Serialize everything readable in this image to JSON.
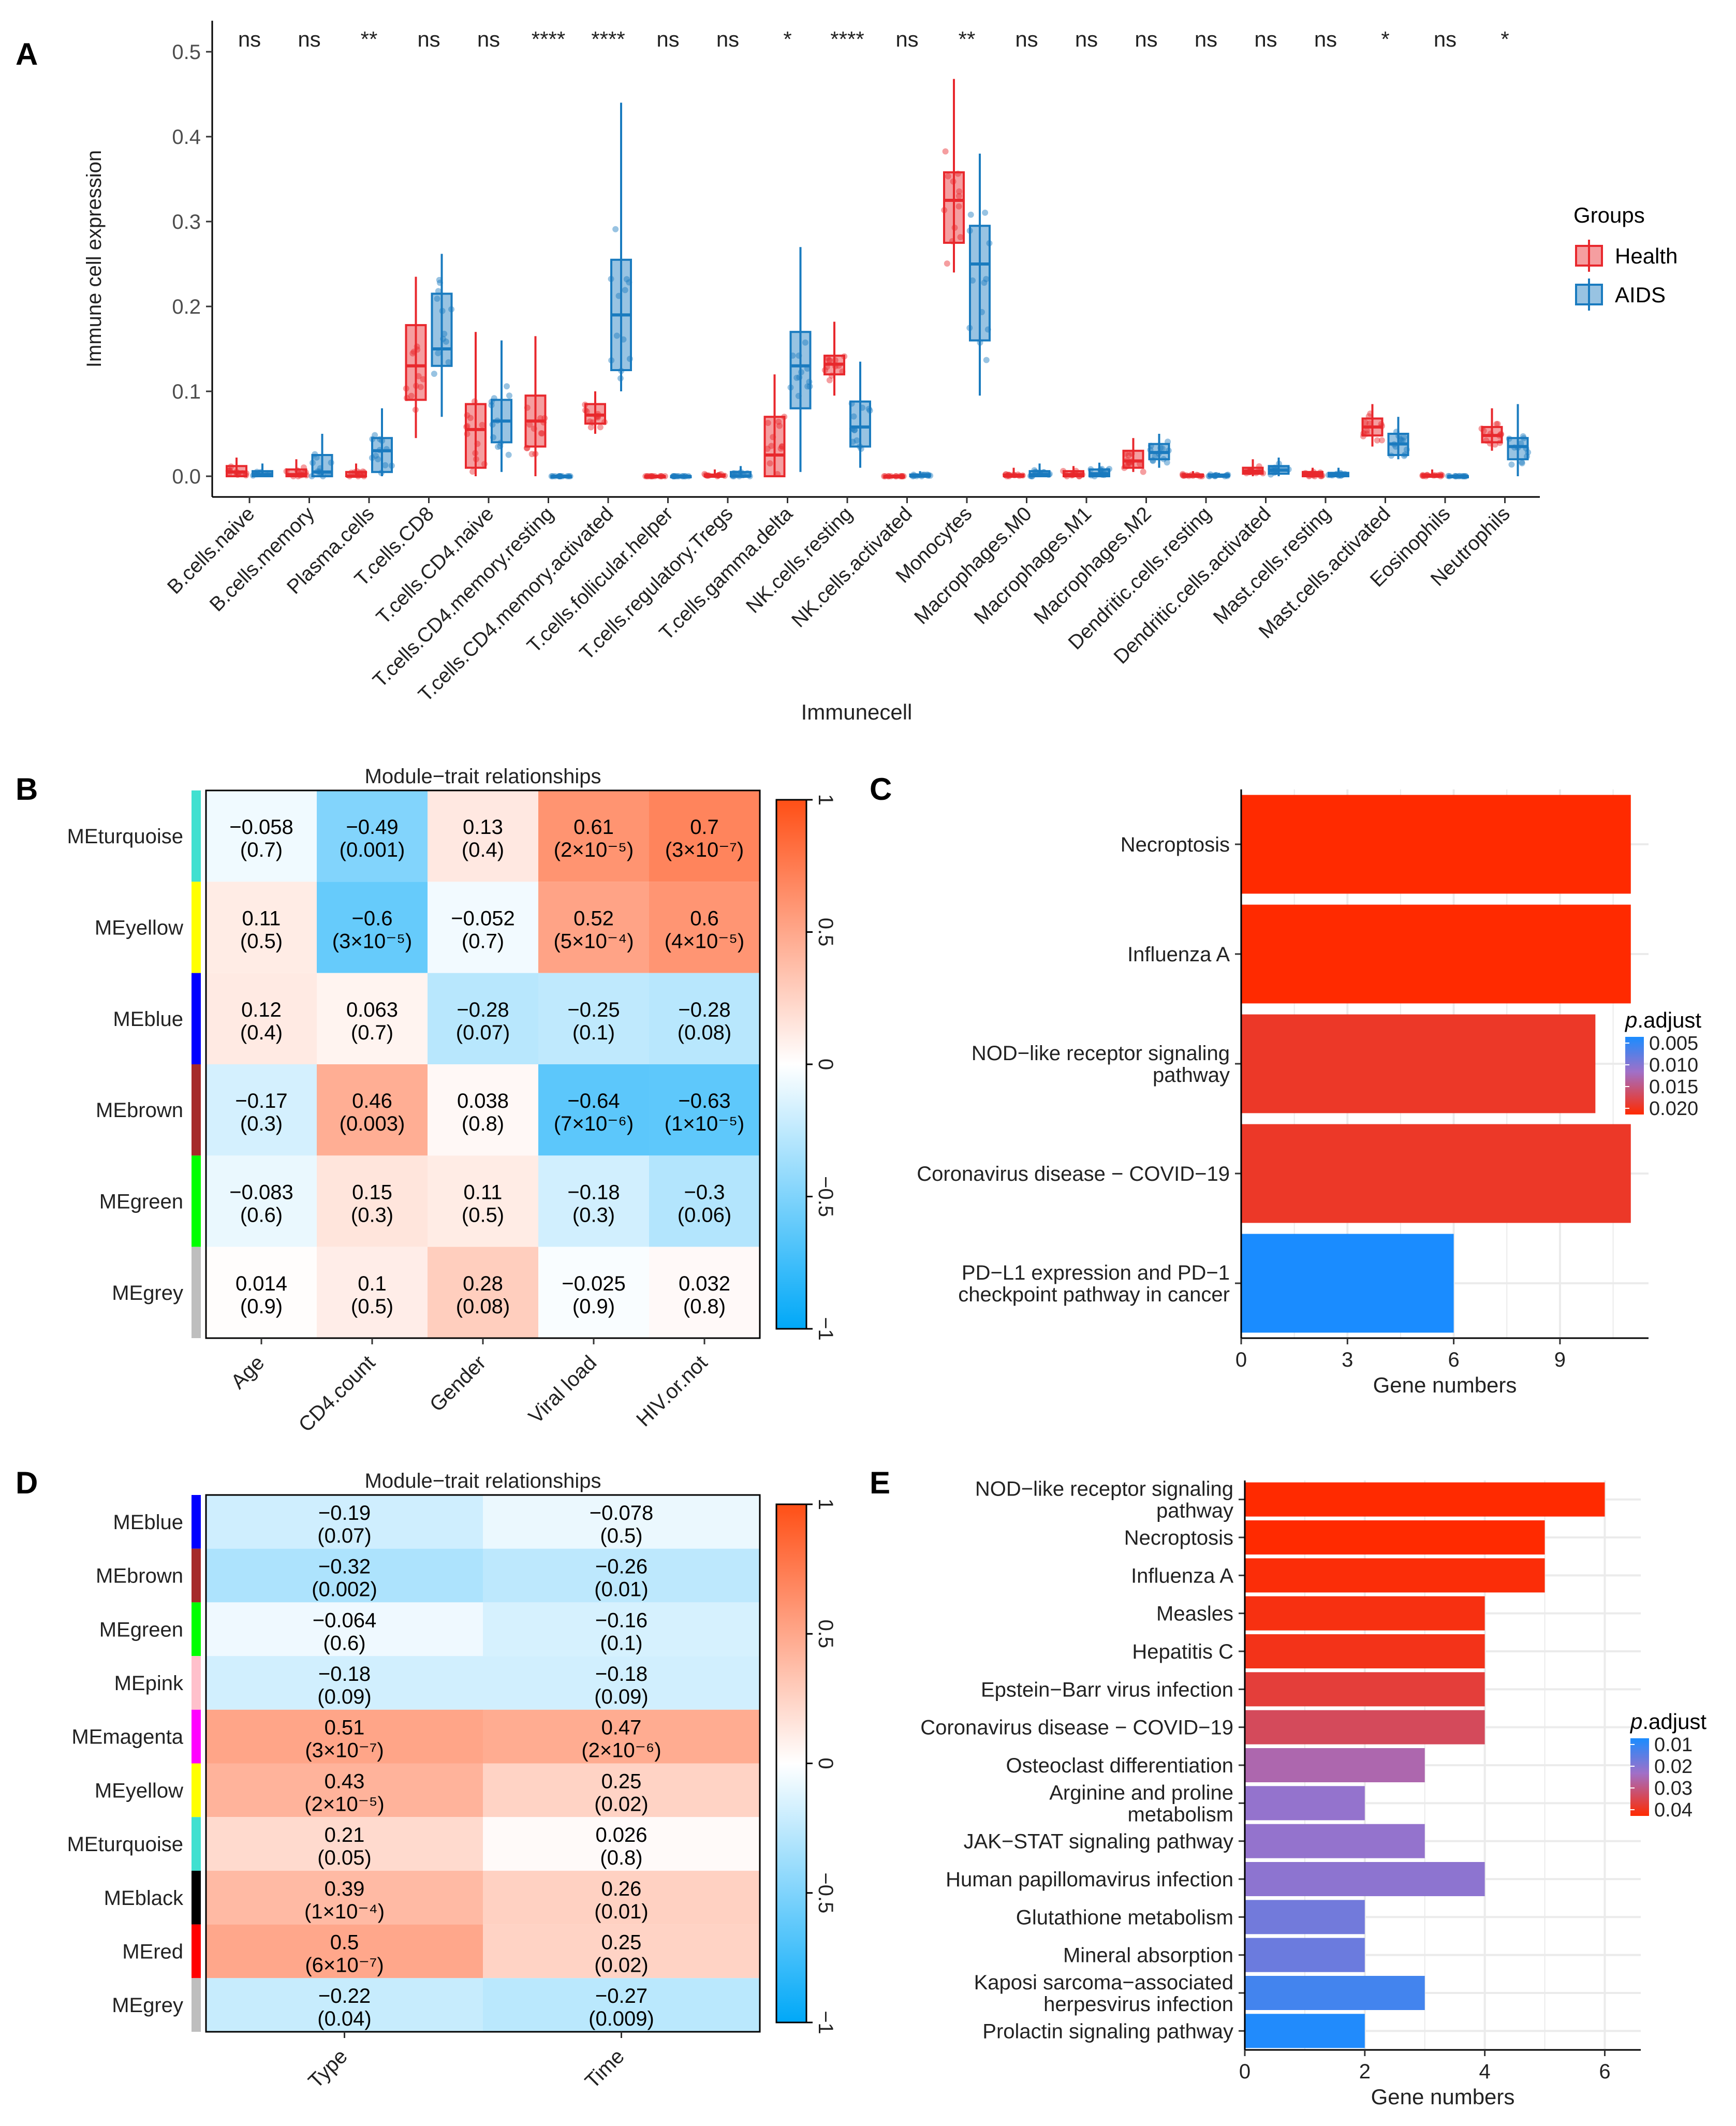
{
  "colors": {
    "health": "#E8282D",
    "aids": "#1A7BBF",
    "bar_high": "#FF2A00",
    "bar_mid": "#FF4D40",
    "bar_low": "#1A8CFF",
    "heat_pos": "#FF4F16",
    "heat_neg": "#00A8F8",
    "grid": "#EBEBEB"
  },
  "panels": {
    "a": {
      "letter": "A"
    },
    "b": {
      "letter": "B"
    },
    "c": {
      "letter": "C"
    },
    "d": {
      "letter": "D"
    },
    "e": {
      "letter": "E"
    }
  },
  "chart_data": [
    {
      "id": "A",
      "type": "box",
      "title": "",
      "xlabel": "Immunecell",
      "ylabel": "Immune cell expression",
      "ylim": [
        0,
        0.5
      ],
      "yticks": [
        "0.0",
        "0.1",
        "0.2",
        "0.3",
        "0.4",
        "0.5"
      ],
      "legend": {
        "title": "Groups",
        "position": "right",
        "items": [
          "Health",
          "AIDS"
        ]
      },
      "categories": [
        "B.cells.naive",
        "B.cells.memory",
        "Plasma.cells",
        "T.cells.CD8",
        "T.cells.CD4.naive",
        "T.cells.CD4.memory.resting",
        "T.cells.CD4.memory.activated",
        "T.cells.follicular.helper",
        "T.cells.regulatory.Tregs",
        "T.cells.gamma.delta",
        "NK.cells.resting",
        "NK.cells.activated",
        "Monocytes",
        "Macrophages.M0",
        "Macrophages.M1",
        "Macrophages.M2",
        "Dendritic.cells.resting",
        "Dendritic.cells.activated",
        "Mast.cells.resting",
        "Mast.cells.activated",
        "Eosinophils",
        "Neutrophils"
      ],
      "significance": [
        "ns",
        "ns",
        "**",
        "ns",
        "ns",
        "****",
        "****",
        "ns",
        "ns",
        "*",
        "****",
        "ns",
        "**",
        "ns",
        "ns",
        "ns",
        "ns",
        "ns",
        "ns",
        "*",
        "ns",
        "*"
      ],
      "series": [
        {
          "name": "Health",
          "boxes": [
            [
              0,
              0,
              0.005,
              0.012,
              0.022
            ],
            [
              0,
              0,
              0.002,
              0.008,
              0.02
            ],
            [
              0,
              0,
              0,
              0.005,
              0.015
            ],
            [
              0.045,
              0.09,
              0.13,
              0.178,
              0.235
            ],
            [
              0,
              0.01,
              0.055,
              0.085,
              0.17
            ],
            [
              0,
              0.035,
              0.065,
              0.095,
              0.165
            ],
            [
              0.05,
              0.062,
              0.072,
              0.085,
              0.1
            ],
            [
              0,
              0,
              0,
              0,
              0
            ],
            [
              0,
              0,
              0,
              0.002,
              0.008
            ],
            [
              0,
              0,
              0.025,
              0.07,
              0.12
            ],
            [
              0.095,
              0.12,
              0.132,
              0.142,
              0.182
            ],
            [
              0,
              0,
              0,
              0,
              0
            ],
            [
              0.24,
              0.275,
              0.325,
              0.358,
              0.468
            ],
            [
              0,
              0,
              0,
              0.002,
              0.01
            ],
            [
              0,
              0,
              0.002,
              0.006,
              0.012
            ],
            [
              0.005,
              0.01,
              0.018,
              0.03,
              0.045
            ],
            [
              0,
              0,
              0,
              0.002,
              0.006
            ],
            [
              0,
              0.003,
              0.006,
              0.01,
              0.02
            ],
            [
              0,
              0,
              0.002,
              0.005,
              0.01
            ],
            [
              0.035,
              0.048,
              0.058,
              0.068,
              0.085
            ],
            [
              0,
              0,
              0,
              0.002,
              0.008
            ],
            [
              0.03,
              0.04,
              0.048,
              0.058,
              0.08
            ]
          ]
        },
        {
          "name": "AIDS",
          "boxes": [
            [
              0,
              0,
              0.002,
              0.006,
              0.015
            ],
            [
              0,
              0,
              0.005,
              0.025,
              0.05
            ],
            [
              0,
              0.005,
              0.03,
              0.045,
              0.08
            ],
            [
              0.07,
              0.13,
              0.15,
              0.215,
              0.262
            ],
            [
              0.005,
              0.04,
              0.065,
              0.09,
              0.16
            ],
            [
              0,
              0,
              0,
              0,
              0
            ],
            [
              0.1,
              0.125,
              0.19,
              0.255,
              0.44
            ],
            [
              0,
              0,
              0,
              0,
              0
            ],
            [
              0,
              0,
              0,
              0.005,
              0.012
            ],
            [
              0.005,
              0.08,
              0.13,
              0.17,
              0.27
            ],
            [
              0.01,
              0.035,
              0.058,
              0.088,
              0.135
            ],
            [
              0,
              0,
              0,
              0.002,
              0.006
            ],
            [
              0.095,
              0.16,
              0.25,
              0.295,
              0.38
            ],
            [
              0,
              0,
              0.002,
              0.006,
              0.015
            ],
            [
              0,
              0,
              0.003,
              0.008,
              0.016
            ],
            [
              0.01,
              0.02,
              0.028,
              0.038,
              0.05
            ],
            [
              0,
              0,
              0,
              0.002,
              0.004
            ],
            [
              0,
              0.003,
              0.007,
              0.012,
              0.022
            ],
            [
              0,
              0,
              0.002,
              0.004,
              0.01
            ],
            [
              0.02,
              0.025,
              0.038,
              0.05,
              0.07
            ],
            [
              0,
              0,
              0,
              0,
              0.002
            ],
            [
              0,
              0.02,
              0.035,
              0.045,
              0.085
            ]
          ]
        }
      ]
    },
    {
      "id": "B",
      "type": "heatmap",
      "title": "Module−trait relationships",
      "rows": [
        "MEturquoise",
        "MEyellow",
        "MEblue",
        "MEbrown",
        "MEgreen",
        "MEgrey"
      ],
      "row_colors": [
        "#40E0D0",
        "#FFFF00",
        "#0000FF",
        "#A52A2A",
        "#00FF00",
        "#BEBEBE"
      ],
      "columns": [
        "Age",
        "CD4.count",
        "Gender",
        "Viral load",
        "HIV.or.not"
      ],
      "values": [
        [
          -0.058,
          -0.49,
          0.13,
          0.61,
          0.7
        ],
        [
          0.11,
          -0.6,
          -0.052,
          0.52,
          0.6
        ],
        [
          0.12,
          0.063,
          -0.28,
          -0.25,
          -0.28
        ],
        [
          -0.17,
          0.46,
          0.038,
          -0.64,
          -0.63
        ],
        [
          -0.083,
          0.15,
          0.11,
          -0.18,
          -0.3
        ],
        [
          0.014,
          0.1,
          0.28,
          -0.025,
          0.032
        ]
      ],
      "labels": [
        [
          "−0.058",
          "−0.49",
          "0.13",
          "0.61",
          "0.7"
        ],
        [
          "0.11",
          "−0.6",
          "−0.052",
          "0.52",
          "0.6"
        ],
        [
          "0.12",
          "0.063",
          "−0.28",
          "−0.25",
          "−0.28"
        ],
        [
          "−0.17",
          "0.46",
          "0.038",
          "−0.64",
          "−0.63"
        ],
        [
          "−0.083",
          "0.15",
          "0.11",
          "−0.18",
          "−0.3"
        ],
        [
          "0.014",
          "0.1",
          "0.28",
          "−0.025",
          "0.032"
        ]
      ],
      "pvalues": [
        [
          "(0.7)",
          "(0.001)",
          "(0.4)",
          "(2×10⁻⁵)",
          "(3×10⁻⁷)"
        ],
        [
          "(0.5)",
          "(3×10⁻⁵)",
          "(0.7)",
          "(5×10⁻⁴)",
          "(4×10⁻⁵)"
        ],
        [
          "(0.4)",
          "(0.7)",
          "(0.07)",
          "(0.1)",
          "(0.08)"
        ],
        [
          "(0.3)",
          "(0.003)",
          "(0.8)",
          "(7×10⁻⁶)",
          "(1×10⁻⁵)"
        ],
        [
          "(0.6)",
          "(0.3)",
          "(0.5)",
          "(0.3)",
          "(0.06)"
        ],
        [
          "(0.9)",
          "(0.5)",
          "(0.08)",
          "(0.9)",
          "(0.8)"
        ]
      ],
      "scale_ticks": [
        "1",
        "0.5",
        "0",
        "−0.5",
        "−1"
      ],
      "range": [
        -1,
        1
      ]
    },
    {
      "id": "C",
      "type": "bar",
      "orientation": "horizontal",
      "xlabel": "Gene numbers",
      "xlim": [
        0,
        11.5
      ],
      "xticks": [
        0,
        3,
        6,
        9
      ],
      "categories": [
        [
          "Necroptosis"
        ],
        [
          "Influenza A"
        ],
        [
          "NOD−like receptor signaling",
          "pathway"
        ],
        [
          "Coronavirus disease − COVID−19"
        ],
        [
          "PD−L1 expression and PD−1",
          "checkpoint pathway in cancer"
        ]
      ],
      "values": [
        11,
        11,
        10,
        11,
        6
      ],
      "p_adjust": [
        0.022,
        0.022,
        0.02,
        0.02,
        0.004
      ],
      "legend": {
        "title": "p.adjust",
        "title_italic": "p",
        "title_rest": ".adjust",
        "ticks": [
          "0.005",
          "0.010",
          "0.015",
          "0.020"
        ],
        "range": [
          0.004,
          0.022
        ],
        "position": "right"
      }
    },
    {
      "id": "D",
      "type": "heatmap",
      "title": "Module−trait relationships",
      "rows": [
        "MEblue",
        "MEbrown",
        "MEgreen",
        "MEpink",
        "MEmagenta",
        "MEyellow",
        "MEturquoise",
        "MEblack",
        "MEred",
        "MEgrey"
      ],
      "row_colors": [
        "#0000FF",
        "#A52A2A",
        "#00FF00",
        "#FFC0CB",
        "#FF00FF",
        "#FFFF00",
        "#40E0D0",
        "#000000",
        "#FF0000",
        "#BEBEBE"
      ],
      "columns": [
        "Type",
        "Time"
      ],
      "values": [
        [
          -0.19,
          -0.078
        ],
        [
          -0.32,
          -0.26
        ],
        [
          -0.064,
          -0.16
        ],
        [
          -0.18,
          -0.18
        ],
        [
          0.51,
          0.47
        ],
        [
          0.43,
          0.25
        ],
        [
          0.21,
          0.026
        ],
        [
          0.39,
          0.26
        ],
        [
          0.5,
          0.25
        ],
        [
          -0.22,
          -0.27
        ]
      ],
      "labels": [
        [
          "−0.19",
          "−0.078"
        ],
        [
          "−0.32",
          "−0.26"
        ],
        [
          "−0.064",
          "−0.16"
        ],
        [
          "−0.18",
          "−0.18"
        ],
        [
          "0.51",
          "0.47"
        ],
        [
          "0.43",
          "0.25"
        ],
        [
          "0.21",
          "0.026"
        ],
        [
          "0.39",
          "0.26"
        ],
        [
          "0.5",
          "0.25"
        ],
        [
          "−0.22",
          "−0.27"
        ]
      ],
      "pvalues": [
        [
          "(0.07)",
          "(0.5)"
        ],
        [
          "(0.002)",
          "(0.01)"
        ],
        [
          "(0.6)",
          "(0.1)"
        ],
        [
          "(0.09)",
          "(0.09)"
        ],
        [
          "(3×10⁻⁷)",
          "(2×10⁻⁶)"
        ],
        [
          "(2×10⁻⁵)",
          "(0.02)"
        ],
        [
          "(0.05)",
          "(0.8)"
        ],
        [
          "(1×10⁻⁴)",
          "(0.01)"
        ],
        [
          "(6×10⁻⁷)",
          "(0.02)"
        ],
        [
          "(0.04)",
          "(0.009)"
        ]
      ],
      "scale_ticks": [
        "1",
        "0.5",
        "0",
        "−0.5",
        "−1"
      ],
      "range": [
        -1,
        1
      ]
    },
    {
      "id": "E",
      "type": "bar",
      "orientation": "horizontal",
      "xlabel": "Gene numbers",
      "xlim": [
        0,
        6.6
      ],
      "xticks": [
        0,
        2,
        4,
        6
      ],
      "categories": [
        [
          "NOD−like receptor signaling",
          "pathway"
        ],
        [
          "Necroptosis"
        ],
        [
          "Influenza A"
        ],
        [
          "Measles"
        ],
        [
          "Hepatitis C"
        ],
        [
          "Epstein−Barr virus infection"
        ],
        [
          "Coronavirus disease − COVID−19"
        ],
        [
          "Osteoclast differentiation"
        ],
        [
          "Arginine and proline",
          "metabolism"
        ],
        [
          "JAK−STAT signaling pathway"
        ],
        [
          "Human papillomavirus infection"
        ],
        [
          "Glutathione metabolism"
        ],
        [
          "Mineral absorption"
        ],
        [
          "Kaposi sarcoma−associated",
          "herpesvirus infection"
        ],
        [
          "Prolactin signaling pathway"
        ]
      ],
      "values": [
        6,
        5,
        5,
        4,
        4,
        4,
        4,
        3,
        2,
        3,
        4,
        2,
        2,
        3,
        2
      ],
      "p_adjust": [
        0.048,
        0.048,
        0.047,
        0.046,
        0.045,
        0.041,
        0.037,
        0.027,
        0.022,
        0.022,
        0.021,
        0.017,
        0.016,
        0.01,
        0.005
      ],
      "legend": {
        "title": "p.adjust",
        "title_italic": "p",
        "title_rest": ".adjust",
        "ticks": [
          "0.01",
          "0.02",
          "0.03",
          "0.04"
        ],
        "range": [
          0.004,
          0.048
        ],
        "position": "right"
      }
    }
  ]
}
